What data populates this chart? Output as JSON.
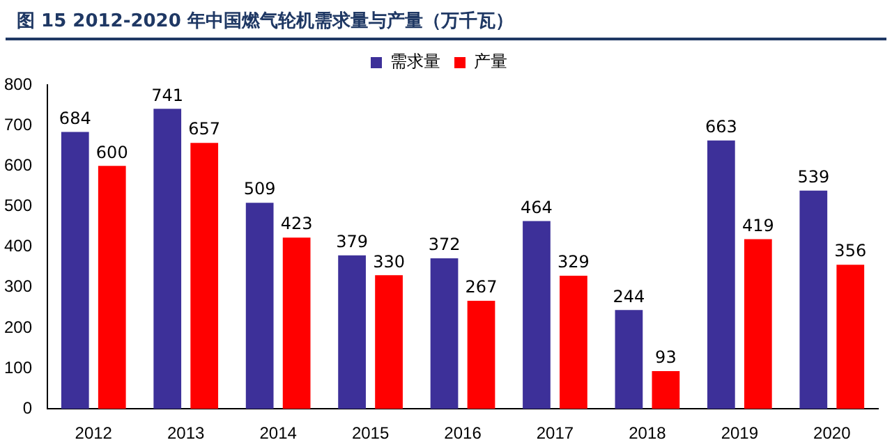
{
  "chart_data": {
    "type": "bar",
    "title": "图 15  2012-2020 年中国燃气轮机需求量与产量（万千瓦）",
    "categories": [
      "2012",
      "2013",
      "2014",
      "2015",
      "2016",
      "2017",
      "2018",
      "2019",
      "2020"
    ],
    "series": [
      {
        "name": "需求量",
        "color": "#3d3099",
        "values": [
          684,
          741,
          509,
          379,
          372,
          464,
          244,
          663,
          539
        ]
      },
      {
        "name": "产量",
        "color": "#ff0000",
        "values": [
          600,
          657,
          423,
          330,
          267,
          329,
          93,
          419,
          356
        ]
      }
    ],
    "ylim": [
      0,
      800
    ],
    "yticks": [
      0,
      100,
      200,
      300,
      400,
      500,
      600,
      700,
      800
    ],
    "grid": false,
    "legend": "top",
    "data_labels": true
  }
}
